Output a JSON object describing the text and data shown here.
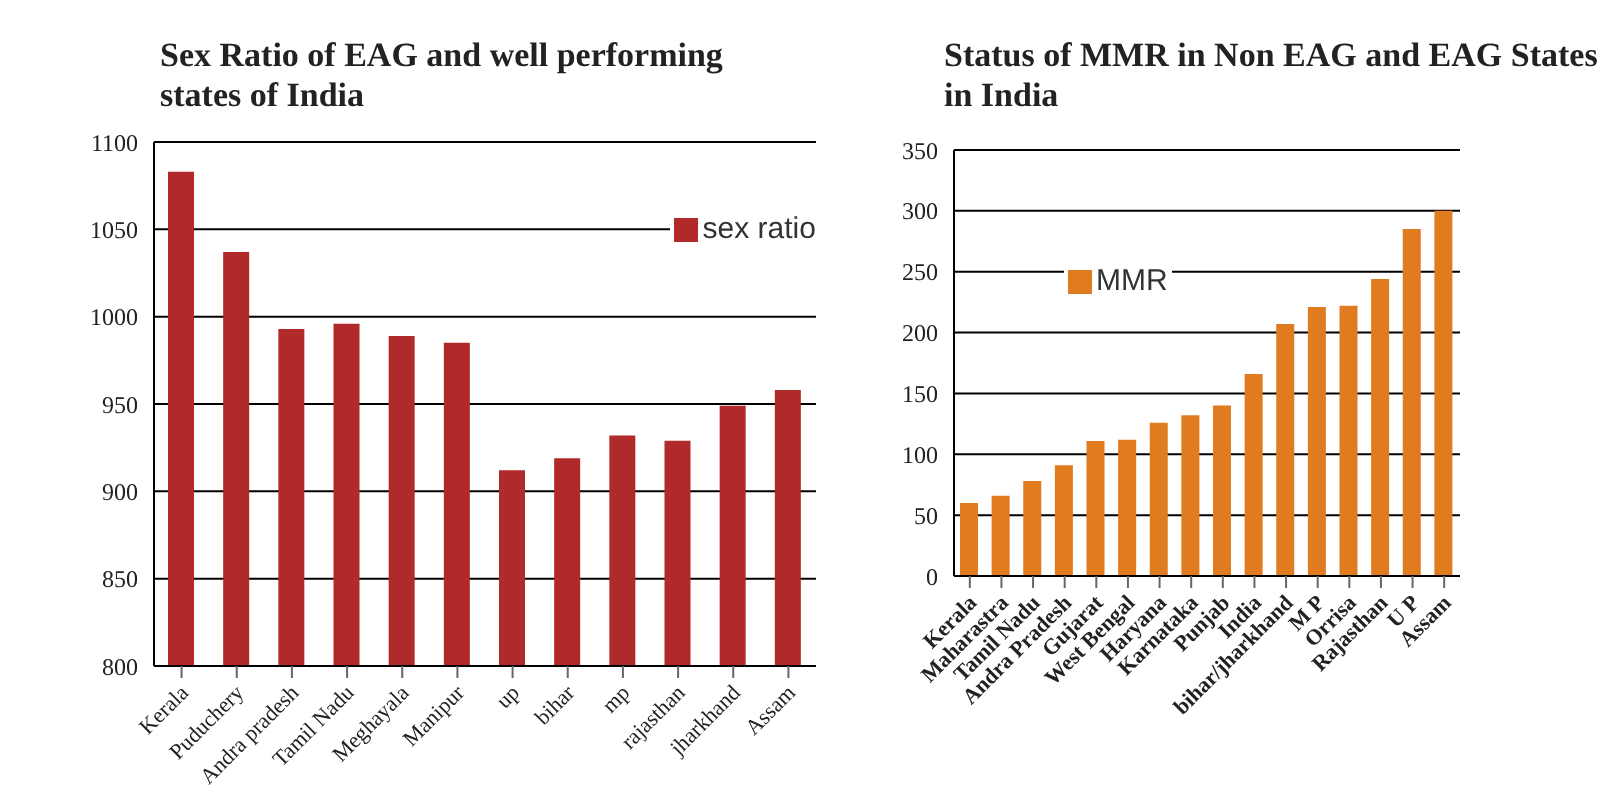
{
  "chart_data": [
    {
      "type": "bar",
      "title": "Sex Ratio of EAG and well performing states of India",
      "categories": [
        "Kerala",
        "Puduchery",
        "Andra pradesh",
        "Tamil Nadu",
        "Meghayala",
        "Manipur",
        "up",
        "bihar",
        "mp",
        "rajasthan",
        "jharkhand",
        "Assam"
      ],
      "series": [
        {
          "name": "sex ratio",
          "color": "#b02a2a",
          "values": [
            1083,
            1037,
            993,
            996,
            989,
            985,
            912,
            919,
            932,
            929,
            949,
            958
          ]
        }
      ],
      "ylim": [
        800,
        1100
      ],
      "yticks": [
        800,
        850,
        900,
        950,
        1000,
        1050,
        1100
      ],
      "grid": "y",
      "legend": "top right"
    },
    {
      "type": "bar",
      "title": "Status of MMR in Non EAG and EAG States in India",
      "categories": [
        "Kerala",
        "Maharastra",
        "Tamil Nadu",
        "Andra Pradesh",
        "Gujarat",
        "West Bengal",
        "Haryana",
        "Karnataka",
        "Punjab",
        "India",
        "bihar/jharkhand",
        "M P",
        "Orrisa",
        "Rajasthan",
        "U P",
        "Assam"
      ],
      "series": [
        {
          "name": "MMR",
          "color": "#e07b20",
          "values": [
            60,
            66,
            78,
            91,
            111,
            112,
            126,
            132,
            140,
            166,
            207,
            221,
            222,
            244,
            285,
            300
          ]
        }
      ],
      "ylim": [
        0,
        350
      ],
      "yticks": [
        0,
        50,
        100,
        150,
        200,
        250,
        300,
        350
      ],
      "grid": "y",
      "legend": "top left"
    }
  ]
}
